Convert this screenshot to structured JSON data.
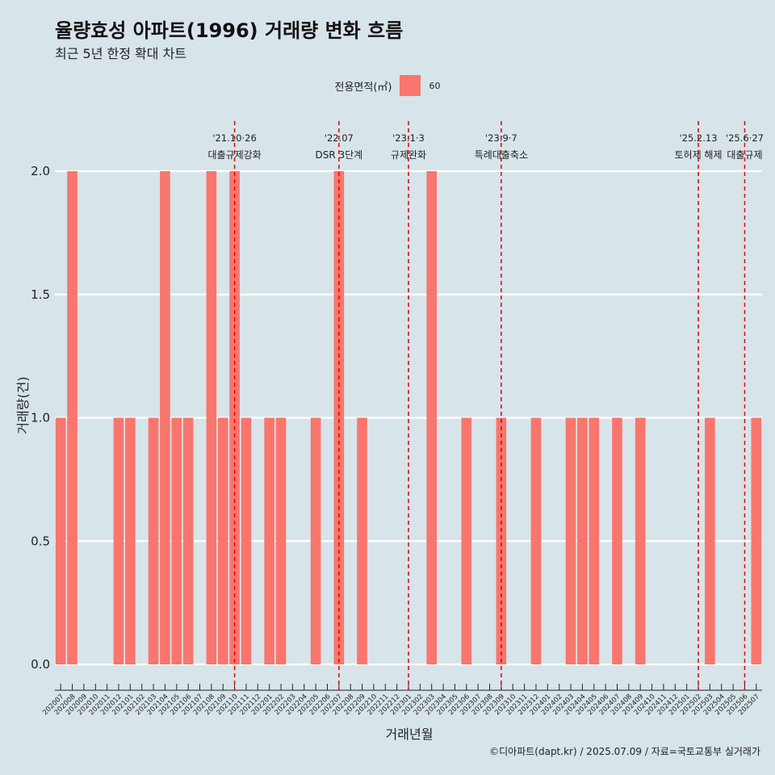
{
  "title": "율량효성 아파트(1996) 거래량 변화 흐름",
  "subtitle": "최근 5년 한정 확대 차트",
  "legend": {
    "title": "전용면적(㎡)",
    "label": "60",
    "color": "#f8766d"
  },
  "caption": "©디아파트(dapt.kr) / 2025.07.09 / 자료=국토교통부 실거래가",
  "chart_data": {
    "type": "bar",
    "xlabel": "거래년월",
    "ylabel": "거래량(건)",
    "ylim": [
      0,
      2
    ],
    "yticks": [
      0.0,
      0.5,
      1.0,
      1.5,
      2.0
    ],
    "ytick_labels": [
      "0.0",
      "0.5",
      "1.0",
      "1.5",
      "2.0"
    ],
    "grid": true,
    "legend_position": "top",
    "bar_color": "#f8766d",
    "categories": [
      "202007",
      "202008",
      "202009",
      "202010",
      "202011",
      "202012",
      "202101",
      "202102",
      "202103",
      "202104",
      "202105",
      "202106",
      "202107",
      "202108",
      "202109",
      "202110",
      "202111",
      "202112",
      "202201",
      "202202",
      "202203",
      "202204",
      "202205",
      "202206",
      "202207",
      "202208",
      "202209",
      "202210",
      "202211",
      "202212",
      "202301",
      "202302",
      "202303",
      "202304",
      "202305",
      "202306",
      "202307",
      "202308",
      "202309",
      "202310",
      "202311",
      "202312",
      "202401",
      "202402",
      "202403",
      "202404",
      "202405",
      "202406",
      "202407",
      "202408",
      "202409",
      "202410",
      "202411",
      "202412",
      "202501",
      "202502",
      "202503",
      "202504",
      "202505",
      "202506",
      "202507"
    ],
    "series": [
      {
        "values": [
          1,
          2,
          0,
          0,
          0,
          1,
          1,
          0,
          1,
          2,
          1,
          1,
          0,
          2,
          1,
          2,
          1,
          0,
          1,
          1,
          0,
          0,
          1,
          0,
          2,
          0,
          1,
          0,
          0,
          0,
          0,
          0,
          2,
          0,
          0,
          1,
          0,
          0,
          1,
          0,
          0,
          1,
          0,
          0,
          1,
          1,
          1,
          0,
          1,
          0,
          1,
          0,
          0,
          0,
          0,
          0,
          1,
          0,
          0,
          0,
          1
        ]
      }
    ],
    "annotations": [
      {
        "x": "202110",
        "line1": "'21.10·26",
        "line2": "대출규제강화"
      },
      {
        "x": "202207",
        "line1": "'22.07",
        "line2": "DSR 3단계"
      },
      {
        "x": "202301",
        "line1": "'23.1·3",
        "line2": "규제완화"
      },
      {
        "x": "202309",
        "line1": "'23.9·7",
        "line2": "특례대출축소"
      },
      {
        "x": "202502",
        "line1": "'25.2.13",
        "line2": "토허제 해제"
      },
      {
        "x": "202506",
        "line1": "'25.6·27",
        "line2": "대출규제"
      }
    ]
  }
}
